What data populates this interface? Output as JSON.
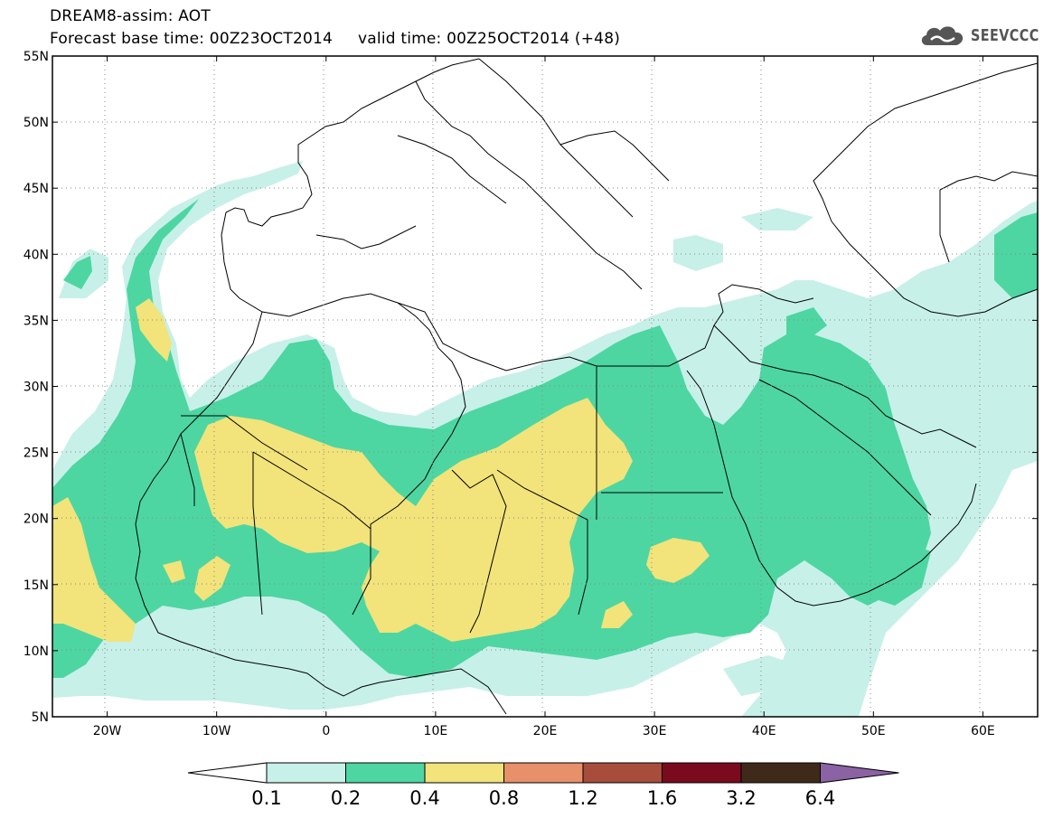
{
  "header": {
    "line1": "DREAM8-assim: AOT",
    "line2": "Forecast base time: 00Z23OCT2014     valid time: 00Z25OCT2014 (+48)"
  },
  "logo": {
    "text": "SEEVCCC",
    "icon": "cloud-icon"
  },
  "map": {
    "variable": "AOT",
    "lon_range": [
      -25,
      65
    ],
    "lat_range": [
      5,
      55
    ],
    "grid": "dotted",
    "lat_ticks": [
      {
        "value": 55,
        "label": "55N"
      },
      {
        "value": 50,
        "label": "50N"
      },
      {
        "value": 45,
        "label": "45N"
      },
      {
        "value": 40,
        "label": "40N"
      },
      {
        "value": 35,
        "label": "35N"
      },
      {
        "value": 30,
        "label": "30N"
      },
      {
        "value": 25,
        "label": "25N"
      },
      {
        "value": 20,
        "label": "20N"
      },
      {
        "value": 15,
        "label": "15N"
      },
      {
        "value": 10,
        "label": "10N"
      },
      {
        "value": 5,
        "label": "5N"
      }
    ],
    "lon_ticks": [
      {
        "value": -20,
        "label": "20W"
      },
      {
        "value": -10,
        "label": "10W"
      },
      {
        "value": 0,
        "label": "0"
      },
      {
        "value": 10,
        "label": "10E"
      },
      {
        "value": 20,
        "label": "20E"
      },
      {
        "value": 30,
        "label": "30E"
      },
      {
        "value": 40,
        "label": "40E"
      },
      {
        "value": 50,
        "label": "50E"
      },
      {
        "value": 60,
        "label": "60E"
      }
    ]
  },
  "colorbar": {
    "labels": [
      "0.1",
      "0.2",
      "0.4",
      "0.8",
      "1.2",
      "1.6",
      "3.2",
      "6.4"
    ],
    "colors": [
      "#ffffff",
      "#c7f0e8",
      "#4dd6a2",
      "#f2e37a",
      "#e8906a",
      "#a84c3c",
      "#7a0a1e",
      "#3f2a1a",
      "#8b62a4"
    ]
  },
  "colors": {
    "level_0.1": "#c7f0e8",
    "level_0.2": "#4dd6a2",
    "level_0.4": "#f2e37a"
  }
}
